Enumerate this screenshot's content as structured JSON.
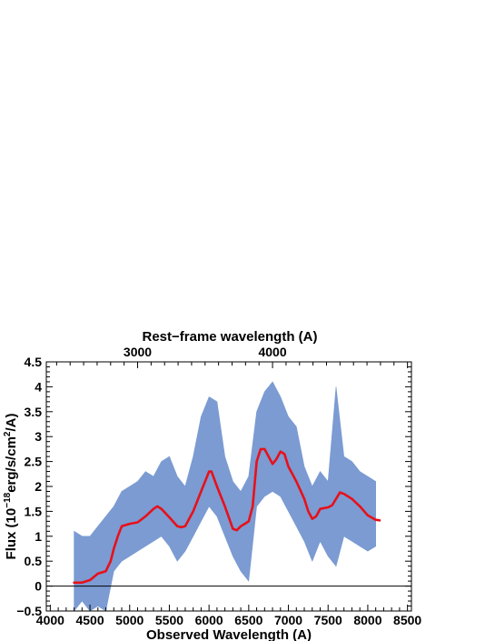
{
  "chart_data": {
    "type": "line",
    "xlabel": "Observed Wavelength (A)",
    "ylabel_parts": [
      "Flux (10",
      "−18",
      "erg/s/cm",
      "2",
      "/A)"
    ],
    "top_xlabel": "Rest−frame wavelength (A)",
    "xlim": [
      3950,
      8550
    ],
    "ylim": [
      -0.5,
      4.5
    ],
    "x_ticks": [
      4000,
      4500,
      5000,
      5500,
      6000,
      6500,
      7000,
      7500,
      8000,
      8500
    ],
    "x_tick_labels": [
      "4000",
      "4500",
      "5000",
      "5500",
      "6000",
      "6500",
      "7000",
      "7500",
      "8000",
      "8500"
    ],
    "y_ticks": [
      -0.5,
      0,
      0.5,
      1,
      1.5,
      2,
      2.5,
      3,
      3.5,
      4,
      4.5
    ],
    "y_tick_labels": [
      "−0.5",
      "0",
      "0.5",
      "1",
      "1.5",
      "2",
      "2.5",
      "3",
      "3.5",
      "4",
      "4.5"
    ],
    "top_axis": {
      "observed_per_rest": 1.7,
      "ticks": [
        3000,
        4000
      ],
      "tick_labels": [
        "3000",
        "4000"
      ]
    },
    "zero_line": 0,
    "grid": false,
    "series": [
      {
        "kind": "band",
        "color": "#7b9bd2",
        "x": [
          4300,
          4400,
          4500,
          4600,
          4700,
          4800,
          4900,
          5000,
          5100,
          5200,
          5300,
          5400,
          5500,
          5600,
          5700,
          5800,
          5900,
          6000,
          6100,
          6200,
          6300,
          6400,
          6500,
          6600,
          6700,
          6800,
          6900,
          7000,
          7100,
          7200,
          7300,
          7400,
          7500,
          7600,
          7700,
          7800,
          7900,
          8000,
          8100
        ],
        "low": [
          -0.5,
          -0.3,
          -0.5,
          -0.4,
          -0.5,
          0.3,
          0.5,
          0.6,
          0.7,
          0.8,
          0.9,
          1.0,
          0.8,
          0.5,
          0.7,
          1.0,
          1.3,
          1.6,
          1.4,
          1.0,
          0.6,
          0.3,
          0.1,
          1.6,
          1.8,
          1.9,
          1.8,
          1.5,
          1.2,
          0.9,
          0.5,
          0.9,
          0.6,
          0.4,
          1.0,
          0.9,
          0.8,
          0.7,
          0.8
        ],
        "high": [
          1.1,
          1.0,
          1.0,
          1.2,
          1.4,
          1.6,
          1.9,
          2.0,
          2.1,
          2.3,
          2.2,
          2.5,
          2.6,
          2.2,
          2.0,
          2.6,
          3.4,
          3.8,
          3.7,
          2.6,
          2.1,
          1.9,
          2.2,
          3.5,
          3.9,
          4.1,
          3.8,
          3.4,
          3.2,
          2.4,
          2.0,
          2.3,
          2.1,
          4.0,
          2.6,
          2.5,
          2.3,
          2.2,
          2.1
        ]
      },
      {
        "kind": "line",
        "color": "#e8101a",
        "x": [
          4300,
          4400,
          4500,
          4600,
          4700,
          4760,
          4800,
          4850,
          4900,
          5000,
          5100,
          5200,
          5300,
          5350,
          5400,
          5500,
          5600,
          5650,
          5700,
          5800,
          5900,
          6000,
          6030,
          6100,
          6200,
          6300,
          6350,
          6400,
          6450,
          6500,
          6550,
          6600,
          6650,
          6700,
          6750,
          6800,
          6850,
          6900,
          6950,
          7000,
          7100,
          7200,
          7250,
          7300,
          7350,
          7400,
          7500,
          7550,
          7600,
          7650,
          7700,
          7800,
          7900,
          8000,
          8100,
          8150
        ],
        "y": [
          0.07,
          0.07,
          0.12,
          0.25,
          0.3,
          0.5,
          0.75,
          1.0,
          1.2,
          1.25,
          1.28,
          1.4,
          1.55,
          1.6,
          1.55,
          1.38,
          1.2,
          1.18,
          1.2,
          1.5,
          1.9,
          2.3,
          2.3,
          2.0,
          1.6,
          1.15,
          1.12,
          1.2,
          1.25,
          1.3,
          1.6,
          2.5,
          2.75,
          2.75,
          2.6,
          2.45,
          2.55,
          2.7,
          2.65,
          2.4,
          2.1,
          1.75,
          1.5,
          1.35,
          1.4,
          1.55,
          1.58,
          1.62,
          1.75,
          1.88,
          1.85,
          1.75,
          1.6,
          1.42,
          1.33,
          1.32
        ]
      }
    ]
  }
}
